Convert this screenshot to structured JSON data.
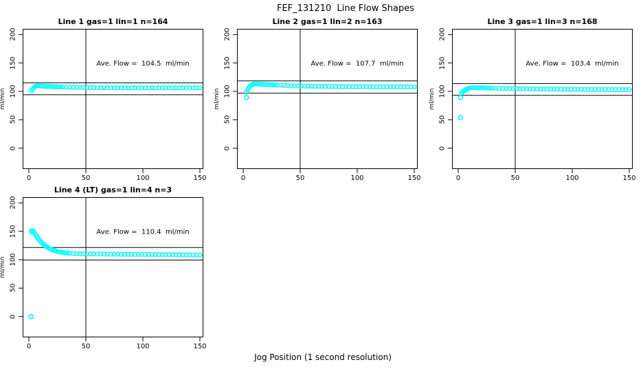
{
  "chart": {
    "title": "FEF_131210  Line Flow Shapes",
    "xlabel": "Jog Position (1 second resolution)",
    "ylabel": "ml/min"
  },
  "chart_data": {
    "type": "scatter",
    "title": "FEF_131210  Line Flow Shapes",
    "xlabel": "Jog Position (1 second resolution)",
    "ylabel": "ml/min",
    "x_ticks": [
      0,
      50,
      100,
      150
    ],
    "y_ticks": [
      0,
      50,
      100,
      150,
      200
    ],
    "xlim": [
      -5,
      153
    ],
    "ylim": [
      -37,
      210
    ],
    "grid": false,
    "point_color": "#00ffff",
    "line_color": "#000000",
    "marker": "open-circle",
    "panels": [
      {
        "title": "Line 1 gas=1 lin=1 n=164",
        "annotation": "Ave. Flow =  104.5  ml/min",
        "ave_flow": 104.5,
        "n": 164,
        "vline": 50,
        "ref_lines": [
          94.1,
          115.0
        ],
        "outliers": [],
        "points": [
          [
            2,
            100.8
          ],
          [
            3,
            103.5
          ],
          [
            4,
            105.9
          ],
          [
            5,
            107.8
          ],
          [
            6,
            109.0
          ],
          [
            7,
            109.5
          ],
          [
            8,
            109.6
          ],
          [
            10,
            109.4
          ],
          [
            12,
            109.1
          ],
          [
            14,
            108.9
          ],
          [
            16,
            108.7
          ],
          [
            18,
            108.5
          ],
          [
            20,
            108.4
          ],
          [
            22,
            108.2
          ],
          [
            24,
            108.1
          ],
          [
            26,
            107.9
          ],
          [
            28,
            107.8
          ],
          [
            30,
            107.6
          ],
          [
            33,
            107.5
          ],
          [
            36,
            107.3
          ],
          [
            39,
            107.2
          ],
          [
            42,
            107.0
          ],
          [
            45,
            106.9
          ],
          [
            48,
            106.8
          ],
          [
            51,
            106.7
          ],
          [
            54,
            106.7
          ],
          [
            57,
            106.6
          ],
          [
            60,
            106.5
          ],
          [
            63,
            106.5
          ],
          [
            66,
            106.4
          ],
          [
            69,
            106.4
          ],
          [
            72,
            106.3
          ],
          [
            75,
            106.4
          ],
          [
            78,
            106.3
          ],
          [
            81,
            106.3
          ],
          [
            84,
            106.4
          ],
          [
            87,
            106.2
          ],
          [
            90,
            106.3
          ],
          [
            93,
            106.3
          ],
          [
            96,
            106.2
          ],
          [
            99,
            106.3
          ],
          [
            102,
            106.2
          ],
          [
            105,
            106.3
          ],
          [
            108,
            106.3
          ],
          [
            111,
            106.2
          ],
          [
            114,
            106.3
          ],
          [
            117,
            106.2
          ],
          [
            120,
            106.3
          ],
          [
            123,
            106.3
          ],
          [
            126,
            106.2
          ],
          [
            129,
            106.3
          ],
          [
            132,
            106.2
          ],
          [
            135,
            106.3
          ],
          [
            138,
            106.2
          ],
          [
            141,
            106.3
          ],
          [
            144,
            106.2
          ],
          [
            147,
            106.3
          ],
          [
            150,
            106.3
          ]
        ]
      },
      {
        "title": "Line 2 gas=1 lin=2 n=163",
        "annotation": "Ave. Flow =  107.7  ml/min",
        "ave_flow": 107.7,
        "n": 163,
        "vline": 50,
        "ref_lines": [
          96.9,
          118.5
        ],
        "outliers": [
          [
            3,
            89
          ]
        ],
        "points": [
          [
            3,
            99.0
          ],
          [
            4,
            103.2
          ],
          [
            5,
            106.6
          ],
          [
            6,
            109.2
          ],
          [
            7,
            111.0
          ],
          [
            8,
            112.1
          ],
          [
            9,
            112.6
          ],
          [
            10,
            112.8
          ],
          [
            12,
            112.9
          ],
          [
            14,
            112.7
          ],
          [
            16,
            112.5
          ],
          [
            18,
            112.3
          ],
          [
            20,
            112.1
          ],
          [
            22,
            111.9
          ],
          [
            24,
            111.7
          ],
          [
            26,
            111.5
          ],
          [
            28,
            111.3
          ],
          [
            30,
            111.1
          ],
          [
            33,
            110.8
          ],
          [
            36,
            110.6
          ],
          [
            39,
            110.3
          ],
          [
            42,
            110.1
          ],
          [
            45,
            109.9
          ],
          [
            48,
            109.7
          ],
          [
            51,
            109.6
          ],
          [
            54,
            109.4
          ],
          [
            57,
            109.3
          ],
          [
            60,
            109.1
          ],
          [
            63,
            109.0
          ],
          [
            66,
            108.9
          ],
          [
            69,
            108.8
          ],
          [
            72,
            108.7
          ],
          [
            75,
            108.7
          ],
          [
            78,
            108.6
          ],
          [
            81,
            108.5
          ],
          [
            84,
            108.5
          ],
          [
            87,
            108.4
          ],
          [
            90,
            108.4
          ],
          [
            93,
            108.3
          ],
          [
            96,
            108.3
          ],
          [
            99,
            108.3
          ],
          [
            102,
            108.2
          ],
          [
            105,
            108.2
          ],
          [
            108,
            108.2
          ],
          [
            111,
            108.1
          ],
          [
            114,
            108.1
          ],
          [
            117,
            108.1
          ],
          [
            120,
            108.1
          ],
          [
            123,
            108.0
          ],
          [
            126,
            108.0
          ],
          [
            129,
            108.0
          ],
          [
            132,
            108.0
          ],
          [
            135,
            108.0
          ],
          [
            138,
            107.9
          ],
          [
            141,
            107.9
          ],
          [
            144,
            107.9
          ],
          [
            147,
            107.9
          ],
          [
            150,
            107.9
          ]
        ]
      },
      {
        "title": "Line 3 gas=1 lin=3 n=168",
        "annotation": "Ave. Flow =  103.4  ml/min",
        "ave_flow": 103.4,
        "n": 168,
        "vline": 50,
        "ref_lines": [
          93.1,
          113.7
        ],
        "outliers": [
          [
            2,
            89
          ],
          [
            2,
            54
          ]
        ],
        "points": [
          [
            3,
            97.5
          ],
          [
            4,
            99.2
          ],
          [
            5,
            100.8
          ],
          [
            6,
            102.2
          ],
          [
            7,
            103.4
          ],
          [
            8,
            104.4
          ],
          [
            9,
            105.1
          ],
          [
            10,
            105.7
          ],
          [
            12,
            106.3
          ],
          [
            14,
            106.6
          ],
          [
            16,
            106.6
          ],
          [
            18,
            106.5
          ],
          [
            20,
            106.4
          ],
          [
            22,
            106.3
          ],
          [
            24,
            106.2
          ],
          [
            26,
            106.0
          ],
          [
            28,
            105.9
          ],
          [
            30,
            105.8
          ],
          [
            33,
            105.6
          ],
          [
            36,
            105.4
          ],
          [
            39,
            105.3
          ],
          [
            42,
            105.1
          ],
          [
            45,
            105.0
          ],
          [
            48,
            104.9
          ],
          [
            51,
            104.8
          ],
          [
            54,
            104.7
          ],
          [
            57,
            104.6
          ],
          [
            60,
            104.5
          ],
          [
            63,
            104.4
          ],
          [
            66,
            104.3
          ],
          [
            69,
            104.2
          ],
          [
            72,
            104.1
          ],
          [
            75,
            104.0
          ],
          [
            78,
            104.0
          ],
          [
            81,
            103.9
          ],
          [
            84,
            103.9
          ],
          [
            87,
            103.8
          ],
          [
            90,
            103.8
          ],
          [
            93,
            103.7
          ],
          [
            96,
            103.7
          ],
          [
            99,
            103.6
          ],
          [
            102,
            103.6
          ],
          [
            105,
            103.5
          ],
          [
            108,
            103.5
          ],
          [
            111,
            103.4
          ],
          [
            114,
            103.4
          ],
          [
            117,
            103.4
          ],
          [
            120,
            103.3
          ],
          [
            123,
            103.3
          ],
          [
            126,
            103.3
          ],
          [
            129,
            103.2
          ],
          [
            132,
            103.2
          ],
          [
            135,
            103.2
          ],
          [
            138,
            103.2
          ],
          [
            141,
            103.1
          ],
          [
            144,
            103.1
          ],
          [
            147,
            103.1
          ],
          [
            150,
            103.1
          ]
        ]
      },
      {
        "title": "Line 4 (LT) gas=1 lin=4 n=3",
        "annotation": "Ave. Flow =  110.4  ml/min",
        "ave_flow": 110.4,
        "n": 3,
        "vline": 50,
        "ref_lines": [
          99.4,
          121.4
        ],
        "outliers": [
          [
            2,
            0
          ]
        ],
        "points": [
          [
            2,
            149.8
          ],
          [
            3,
            151.2
          ],
          [
            4,
            150.0
          ],
          [
            4,
            148.4
          ],
          [
            5,
            146.6
          ],
          [
            6,
            143.6
          ],
          [
            7,
            140.7
          ],
          [
            8,
            137.9
          ],
          [
            9,
            135.3
          ],
          [
            10,
            132.9
          ],
          [
            11,
            130.7
          ],
          [
            12,
            128.7
          ],
          [
            13,
            126.8
          ],
          [
            14,
            125.1
          ],
          [
            15,
            123.6
          ],
          [
            16,
            122.2
          ],
          [
            17,
            121.0
          ],
          [
            18,
            119.9
          ],
          [
            19,
            118.9
          ],
          [
            20,
            118.0
          ],
          [
            21,
            117.2
          ],
          [
            22,
            116.4
          ],
          [
            23,
            115.8
          ],
          [
            24,
            115.2
          ],
          [
            26,
            114.2
          ],
          [
            28,
            113.3
          ],
          [
            30,
            112.6
          ],
          [
            32,
            112.1
          ],
          [
            34,
            111.7
          ],
          [
            36,
            111.3
          ],
          [
            39,
            110.9
          ],
          [
            42,
            110.6
          ],
          [
            45,
            110.4
          ],
          [
            48,
            110.3
          ],
          [
            51,
            110.2
          ],
          [
            54,
            110.1
          ],
          [
            57,
            110.1
          ],
          [
            60,
            110.0
          ],
          [
            63,
            110.0
          ],
          [
            66,
            109.9
          ],
          [
            69,
            109.8
          ],
          [
            72,
            109.8
          ],
          [
            75,
            109.7
          ],
          [
            78,
            109.7
          ],
          [
            81,
            109.6
          ],
          [
            84,
            109.6
          ],
          [
            87,
            109.5
          ],
          [
            90,
            109.5
          ],
          [
            93,
            109.4
          ],
          [
            96,
            109.4
          ],
          [
            99,
            109.3
          ],
          [
            102,
            109.3
          ],
          [
            105,
            109.2
          ],
          [
            108,
            109.2
          ],
          [
            111,
            109.1
          ],
          [
            114,
            109.1
          ],
          [
            117,
            109.0
          ],
          [
            120,
            109.0
          ],
          [
            123,
            108.9
          ],
          [
            126,
            108.9
          ],
          [
            129,
            108.8
          ],
          [
            132,
            108.8
          ],
          [
            135,
            108.7
          ],
          [
            138,
            108.7
          ],
          [
            141,
            108.6
          ],
          [
            144,
            108.6
          ],
          [
            147,
            108.5
          ],
          [
            150,
            108.5
          ]
        ]
      }
    ]
  }
}
